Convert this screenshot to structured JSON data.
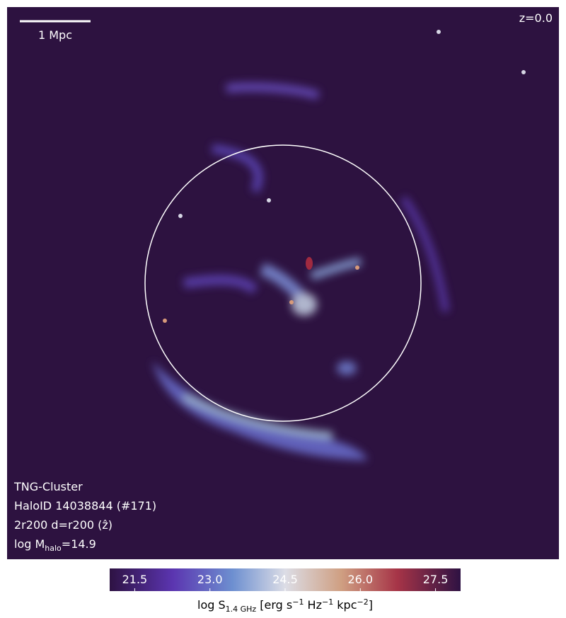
{
  "image": {
    "redshift": "z=0.0",
    "scale_bar": "1 Mpc",
    "info": [
      {
        "parts": [
          "TNG-Cluster"
        ]
      },
      {
        "parts": [
          "HaloID 14038844 (#171)"
        ]
      },
      {
        "parts": [
          "2r200 d=r200 (ẑ)"
        ]
      },
      {
        "parts": [
          "log M",
          "halo",
          "=14.9"
        ]
      }
    ]
  },
  "colorbar": {
    "lim": [
      21.0,
      28.0
    ],
    "ticks": [
      21.5,
      {
        "value": 23.0,
        "label": "23.0"
      },
      24.5,
      {
        "value": 26.0,
        "label": "26.0"
      },
      27.5
    ],
    "label_parts": [
      "log S",
      "1.4 GHz",
      " [erg s",
      "−1",
      " Hz",
      "−1",
      " kpc",
      "−2",
      "]"
    ]
  }
}
